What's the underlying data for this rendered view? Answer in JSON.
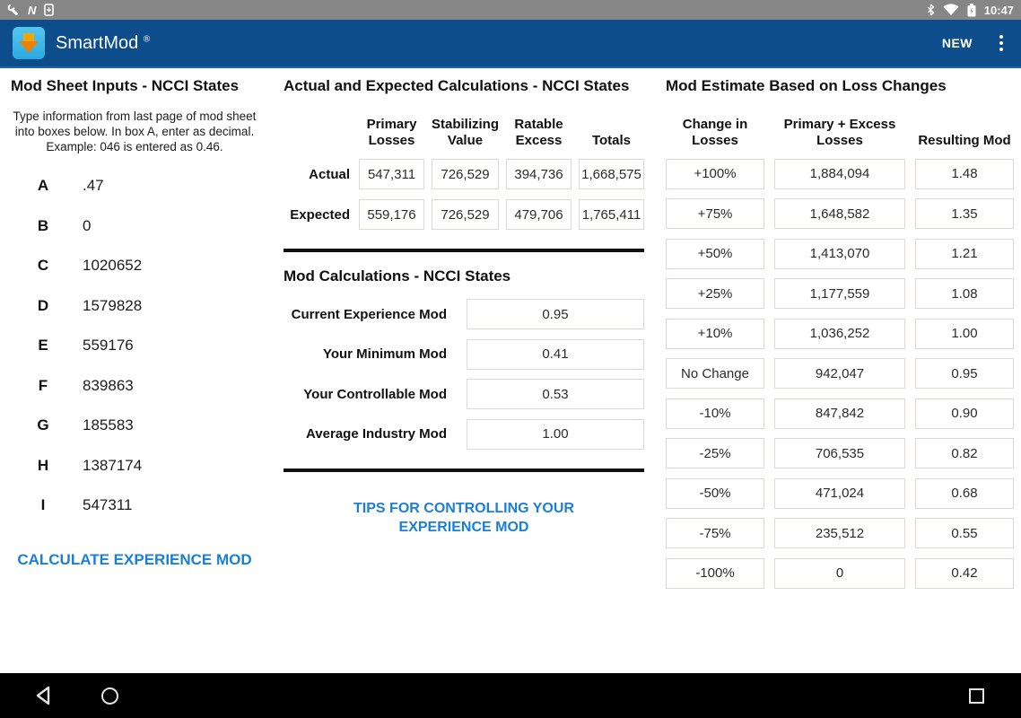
{
  "status_bar": {
    "time": "10:47",
    "left_icons": [
      "wrench-icon",
      "nfc-n-icon",
      "sd-download-icon"
    ],
    "right_icons": [
      "bluetooth-icon",
      "wifi-icon",
      "battery-charging-icon"
    ]
  },
  "app_bar": {
    "title": "SmartMod",
    "registered_mark": "®",
    "new_label": "NEW",
    "overflow_icon": "kebab-menu-icon"
  },
  "inputs_panel": {
    "title": "Mod Sheet Inputs - NCCI States",
    "instructions": "Type information from last page of mod sheet into boxes below. In box A, enter as decimal. Example: 046 is entered as 0.46.",
    "fields": [
      {
        "label": "A",
        "value": ".47"
      },
      {
        "label": "B",
        "value": "0"
      },
      {
        "label": "C",
        "value": "1020652"
      },
      {
        "label": "D",
        "value": "1579828"
      },
      {
        "label": "E",
        "value": "559176"
      },
      {
        "label": "F",
        "value": "839863"
      },
      {
        "label": "G",
        "value": "185583"
      },
      {
        "label": "H",
        "value": "1387174"
      },
      {
        "label": "I",
        "value": "547311"
      }
    ],
    "calculate_button": "CALCULATE EXPERIENCE MOD"
  },
  "calculations_panel": {
    "title": "Actual and Expected Calculations - NCCI States",
    "columns": [
      "Primary Losses",
      "Stabilizing Value",
      "Ratable Excess",
      "Totals"
    ],
    "rows": [
      {
        "label": "Actual",
        "values": [
          "547,311",
          "726,529",
          "394,736",
          "1,668,575"
        ]
      },
      {
        "label": "Expected",
        "values": [
          "559,176",
          "726,529",
          "479,706",
          "1,765,411"
        ]
      }
    ],
    "mod_calculations": {
      "title": "Mod Calculations - NCCI States",
      "rows": [
        {
          "label": "Current Experience Mod",
          "value": "0.95"
        },
        {
          "label": "Your Minimum Mod",
          "value": "0.41"
        },
        {
          "label": "Your Controllable Mod",
          "value": "0.53"
        },
        {
          "label": "Average Industry Mod",
          "value": "1.00"
        }
      ]
    },
    "tips_link": "TIPS FOR CONTROLLING YOUR EXPERIENCE MOD"
  },
  "estimate_panel": {
    "title": "Mod Estimate Based on Loss Changes",
    "columns": [
      "Change in Losses",
      "Primary + Excess Losses",
      "Resulting Mod"
    ],
    "rows": [
      [
        "+100%",
        "1,884,094",
        "1.48"
      ],
      [
        "+75%",
        "1,648,582",
        "1.35"
      ],
      [
        "+50%",
        "1,413,070",
        "1.21"
      ],
      [
        "+25%",
        "1,177,559",
        "1.08"
      ],
      [
        "+10%",
        "1,036,252",
        "1.00"
      ],
      [
        "No Change",
        "942,047",
        "0.95"
      ],
      [
        "-10%",
        "847,842",
        "0.90"
      ],
      [
        "-25%",
        "706,535",
        "0.82"
      ],
      [
        "-50%",
        "471,024",
        "0.68"
      ],
      [
        "-75%",
        "235,512",
        "0.55"
      ],
      [
        "-100%",
        "0",
        "0.42"
      ]
    ]
  },
  "nav_bar": {
    "icons": [
      "back-icon",
      "home-icon",
      "recents-icon"
    ]
  },
  "colors": {
    "status_bar": "#868686",
    "app_bar": "#0d4d8c",
    "link_blue": "#1a7fd8",
    "box_border": "#ded9d3",
    "divider": "#111111"
  }
}
